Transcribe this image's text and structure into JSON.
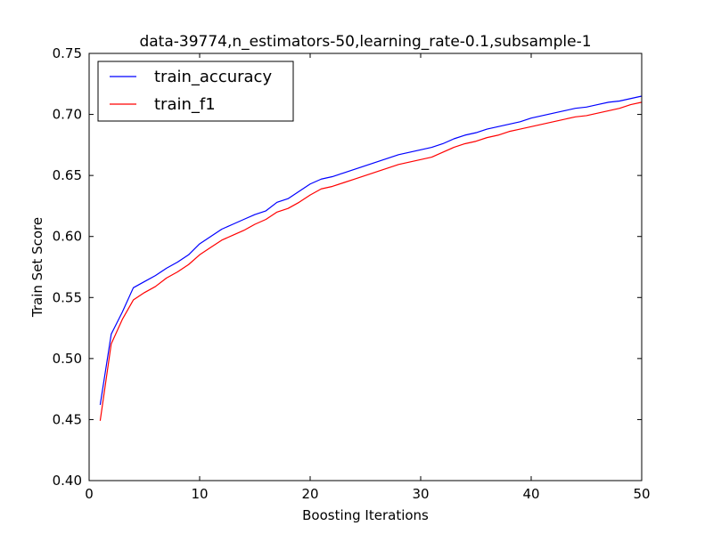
{
  "chart_data": {
    "type": "line",
    "title": "data-39774,n_estimators-50,learning_rate-0.1,subsample-1",
    "xlabel": "Boosting Iterations",
    "ylabel": "Train Set Score",
    "xlim": [
      0,
      50
    ],
    "ylim": [
      0.4,
      0.75
    ],
    "xticks": [
      0,
      10,
      20,
      30,
      40,
      50
    ],
    "xtick_labels": [
      "0",
      "10",
      "20",
      "30",
      "40",
      "50"
    ],
    "yticks": [
      0.4,
      0.45,
      0.5,
      0.55,
      0.6,
      0.65,
      0.7,
      0.75
    ],
    "ytick_labels": [
      "0.40",
      "0.45",
      "0.50",
      "0.55",
      "0.60",
      "0.65",
      "0.70",
      "0.75"
    ],
    "grid": false,
    "legend_position": "top-left",
    "x": [
      1,
      2,
      3,
      4,
      5,
      6,
      7,
      8,
      9,
      10,
      11,
      12,
      13,
      14,
      15,
      16,
      17,
      18,
      19,
      20,
      21,
      22,
      23,
      24,
      25,
      26,
      27,
      28,
      29,
      30,
      31,
      32,
      33,
      34,
      35,
      36,
      37,
      38,
      39,
      40,
      41,
      42,
      43,
      44,
      45,
      46,
      47,
      48,
      49,
      50
    ],
    "series": [
      {
        "name": "train_accuracy",
        "color": "#0000ff",
        "values": [
          0.462,
          0.52,
          0.538,
          0.558,
          0.563,
          0.568,
          0.574,
          0.579,
          0.585,
          0.594,
          0.6,
          0.606,
          0.61,
          0.614,
          0.618,
          0.621,
          0.628,
          0.631,
          0.637,
          0.643,
          0.647,
          0.649,
          0.652,
          0.655,
          0.658,
          0.661,
          0.664,
          0.667,
          0.669,
          0.671,
          0.673,
          0.676,
          0.68,
          0.683,
          0.685,
          0.688,
          0.69,
          0.692,
          0.694,
          0.697,
          0.699,
          0.701,
          0.703,
          0.705,
          0.706,
          0.708,
          0.71,
          0.711,
          0.713,
          0.715
        ]
      },
      {
        "name": "train_f1",
        "color": "#ff0000",
        "values": [
          0.449,
          0.512,
          0.532,
          0.548,
          0.554,
          0.559,
          0.566,
          0.571,
          0.577,
          0.585,
          0.591,
          0.597,
          0.601,
          0.605,
          0.61,
          0.614,
          0.62,
          0.623,
          0.628,
          0.634,
          0.639,
          0.641,
          0.644,
          0.647,
          0.65,
          0.653,
          0.656,
          0.659,
          0.661,
          0.663,
          0.665,
          0.669,
          0.673,
          0.676,
          0.678,
          0.681,
          0.683,
          0.686,
          0.688,
          0.69,
          0.692,
          0.694,
          0.696,
          0.698,
          0.699,
          0.701,
          0.703,
          0.705,
          0.708,
          0.71
        ]
      }
    ]
  }
}
